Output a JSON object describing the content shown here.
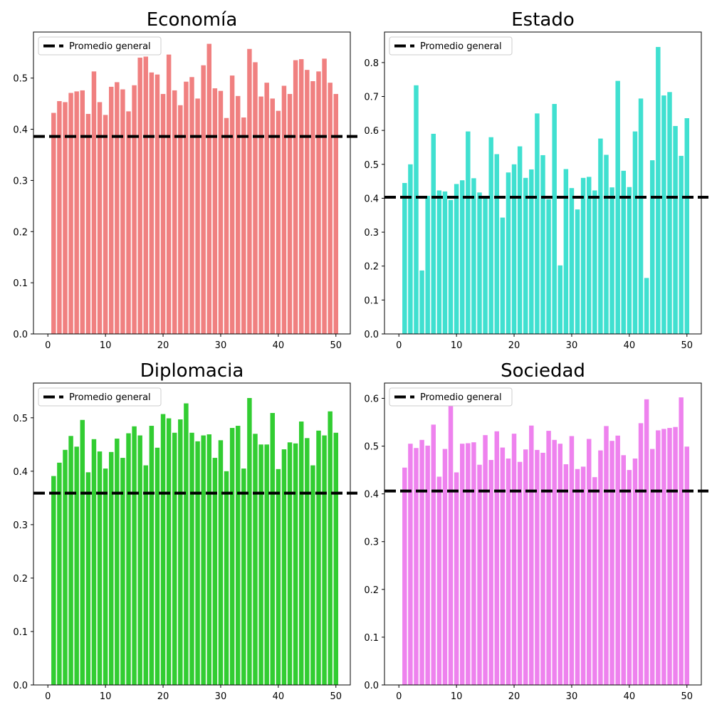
{
  "chart_data": [
    {
      "type": "bar",
      "title": "Economía",
      "color": "#f08080",
      "x": [
        1,
        2,
        3,
        4,
        5,
        6,
        7,
        8,
        9,
        10,
        11,
        12,
        13,
        14,
        15,
        16,
        17,
        18,
        19,
        20,
        21,
        22,
        23,
        24,
        25,
        26,
        27,
        28,
        29,
        30,
        31,
        32,
        33,
        34,
        35,
        36,
        37,
        38,
        39,
        40,
        41,
        42,
        43,
        44,
        45,
        46,
        47,
        48,
        49,
        50
      ],
      "values": [
        0.432,
        0.455,
        0.453,
        0.471,
        0.474,
        0.476,
        0.43,
        0.513,
        0.453,
        0.428,
        0.483,
        0.492,
        0.478,
        0.435,
        0.486,
        0.54,
        0.542,
        0.511,
        0.507,
        0.469,
        0.546,
        0.476,
        0.447,
        0.493,
        0.502,
        0.46,
        0.525,
        0.567,
        0.48,
        0.475,
        0.422,
        0.505,
        0.465,
        0.423,
        0.557,
        0.531,
        0.464,
        0.491,
        0.46,
        0.436,
        0.485,
        0.469,
        0.535,
        0.537,
        0.516,
        0.494,
        0.513,
        0.538,
        0.491,
        0.469
      ],
      "mean": 0.386,
      "ylim": [
        0,
        0.59
      ],
      "yticks": [
        0.0,
        0.1,
        0.2,
        0.3,
        0.4,
        0.5
      ],
      "xlim": [
        -2.5,
        52.5
      ],
      "xticks": [
        0,
        10,
        20,
        30,
        40,
        50
      ],
      "legend": {
        "label": "Promedio general",
        "position": "upper-left"
      }
    },
    {
      "type": "bar",
      "title": "Estado",
      "color": "#40e0d0",
      "x": [
        1,
        2,
        3,
        4,
        5,
        6,
        7,
        8,
        9,
        10,
        11,
        12,
        13,
        14,
        15,
        16,
        17,
        18,
        19,
        20,
        21,
        22,
        23,
        24,
        25,
        26,
        27,
        28,
        29,
        30,
        31,
        32,
        33,
        34,
        35,
        36,
        37,
        38,
        39,
        40,
        41,
        42,
        43,
        44,
        45,
        46,
        47,
        48,
        49,
        50
      ],
      "values": [
        0.445,
        0.5,
        0.733,
        0.187,
        0.407,
        0.59,
        0.423,
        0.42,
        0.395,
        0.442,
        0.453,
        0.597,
        0.459,
        0.417,
        0.4,
        0.58,
        0.53,
        0.343,
        0.476,
        0.5,
        0.553,
        0.46,
        0.485,
        0.65,
        0.527,
        0.397,
        0.678,
        0.202,
        0.486,
        0.43,
        0.367,
        0.46,
        0.463,
        0.423,
        0.576,
        0.528,
        0.432,
        0.746,
        0.481,
        0.433,
        0.597,
        0.694,
        0.165,
        0.512,
        0.846,
        0.703,
        0.713,
        0.613,
        0.525,
        0.636
      ],
      "mean": 0.403,
      "ylim": [
        0,
        0.89
      ],
      "yticks": [
        0.0,
        0.1,
        0.2,
        0.3,
        0.4,
        0.5,
        0.6,
        0.7,
        0.8
      ],
      "xlim": [
        -2.5,
        52.5
      ],
      "xticks": [
        0,
        10,
        20,
        30,
        40,
        50
      ],
      "legend": {
        "label": "Promedio general",
        "position": "upper-left"
      }
    },
    {
      "type": "bar",
      "title": "Diplomacia",
      "color": "#32cd32",
      "x": [
        1,
        2,
        3,
        4,
        5,
        6,
        7,
        8,
        9,
        10,
        11,
        12,
        13,
        14,
        15,
        16,
        17,
        18,
        19,
        20,
        21,
        22,
        23,
        24,
        25,
        26,
        27,
        28,
        29,
        30,
        31,
        32,
        33,
        34,
        35,
        36,
        37,
        38,
        39,
        40,
        41,
        42,
        43,
        44,
        45,
        46,
        47,
        48,
        49,
        50
      ],
      "values": [
        0.391,
        0.416,
        0.44,
        0.466,
        0.446,
        0.496,
        0.398,
        0.46,
        0.437,
        0.405,
        0.436,
        0.461,
        0.425,
        0.471,
        0.484,
        0.467,
        0.411,
        0.485,
        0.444,
        0.507,
        0.499,
        0.472,
        0.497,
        0.527,
        0.472,
        0.456,
        0.467,
        0.469,
        0.425,
        0.458,
        0.4,
        0.481,
        0.485,
        0.405,
        0.537,
        0.47,
        0.45,
        0.45,
        0.509,
        0.404,
        0.441,
        0.454,
        0.452,
        0.493,
        0.462,
        0.411,
        0.476,
        0.467,
        0.512,
        0.472
      ],
      "mean": 0.359,
      "ylim": [
        0,
        0.565
      ],
      "yticks": [
        0.0,
        0.1,
        0.2,
        0.3,
        0.4,
        0.5
      ],
      "xlim": [
        -2.5,
        52.5
      ],
      "xticks": [
        0,
        10,
        20,
        30,
        40,
        50
      ],
      "legend": {
        "label": "Promedio general",
        "position": "upper-left"
      }
    },
    {
      "type": "bar",
      "title": "Sociedad",
      "color": "#ee82ee",
      "x": [
        1,
        2,
        3,
        4,
        5,
        6,
        7,
        8,
        9,
        10,
        11,
        12,
        13,
        14,
        15,
        16,
        17,
        18,
        19,
        20,
        21,
        22,
        23,
        24,
        25,
        26,
        27,
        28,
        29,
        30,
        31,
        32,
        33,
        34,
        35,
        36,
        37,
        38,
        39,
        40,
        41,
        42,
        43,
        44,
        45,
        46,
        47,
        48,
        49,
        50
      ],
      "values": [
        0.455,
        0.505,
        0.496,
        0.513,
        0.501,
        0.545,
        0.436,
        0.494,
        0.584,
        0.445,
        0.505,
        0.506,
        0.508,
        0.461,
        0.523,
        0.471,
        0.531,
        0.497,
        0.474,
        0.526,
        0.467,
        0.493,
        0.543,
        0.492,
        0.486,
        0.532,
        0.513,
        0.505,
        0.462,
        0.521,
        0.452,
        0.457,
        0.515,
        0.435,
        0.491,
        0.542,
        0.511,
        0.522,
        0.481,
        0.45,
        0.474,
        0.548,
        0.598,
        0.494,
        0.533,
        0.536,
        0.538,
        0.54,
        0.602,
        0.499
      ],
      "mean": 0.406,
      "ylim": [
        0,
        0.632
      ],
      "yticks": [
        0.0,
        0.1,
        0.2,
        0.3,
        0.4,
        0.5,
        0.6
      ],
      "xlim": [
        -2.5,
        52.5
      ],
      "xticks": [
        0,
        10,
        20,
        30,
        40,
        50
      ],
      "legend": {
        "label": "Promedio general",
        "position": "upper-left"
      }
    }
  ]
}
